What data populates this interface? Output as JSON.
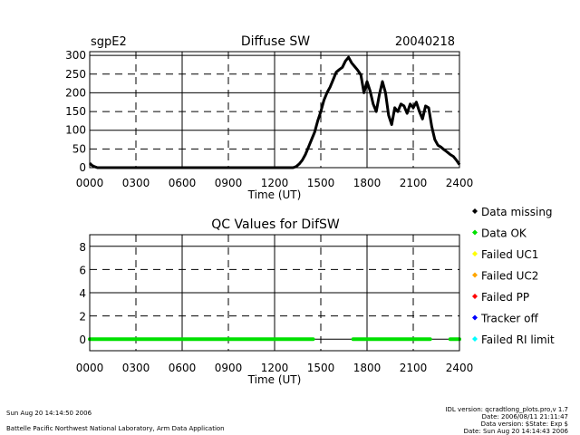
{
  "chart_data": [
    {
      "type": "line",
      "title": "Diffuse SW",
      "site_label": "sgpE2",
      "date_label": "20040218",
      "xlabel": "Time (UT)",
      "ylabel": "",
      "xlim": [
        0,
        24
      ],
      "ylim": [
        0,
        310
      ],
      "x_ticks": [
        "0000",
        "0300",
        "0600",
        "0900",
        "1200",
        "1500",
        "1800",
        "2100",
        "2400"
      ],
      "y_ticks": [
        "0",
        "50",
        "100",
        "150",
        "200",
        "250",
        "300"
      ],
      "series": [
        {
          "name": "Diffuse SW",
          "color": "#000000",
          "x": [
            0.0,
            0.15,
            0.3,
            0.5,
            3,
            6,
            9,
            12,
            13.2,
            13.4,
            13.6,
            13.8,
            14.0,
            14.2,
            14.4,
            14.6,
            14.8,
            15.0,
            15.2,
            15.4,
            15.6,
            15.8,
            16.0,
            16.2,
            16.4,
            16.6,
            16.8,
            17.0,
            17.2,
            17.4,
            17.6,
            17.8,
            18.0,
            18.2,
            18.4,
            18.6,
            18.8,
            19.0,
            19.2,
            19.4,
            19.6,
            19.8,
            20.0,
            20.2,
            20.4,
            20.6,
            20.8,
            21.0,
            21.2,
            21.4,
            21.6,
            21.8,
            22.0,
            22.2,
            22.4,
            22.6,
            22.8,
            23.0,
            23.2,
            23.4,
            23.6,
            23.8,
            24.0
          ],
          "values": [
            12,
            6,
            3,
            0,
            0,
            0,
            0,
            0,
            0,
            3,
            10,
            20,
            35,
            55,
            75,
            95,
            125,
            150,
            180,
            200,
            215,
            235,
            255,
            262,
            268,
            285,
            295,
            280,
            270,
            260,
            248,
            200,
            230,
            205,
            170,
            150,
            195,
            230,
            200,
            140,
            115,
            160,
            150,
            170,
            165,
            145,
            170,
            160,
            175,
            150,
            130,
            165,
            160,
            110,
            75,
            60,
            55,
            48,
            42,
            35,
            30,
            20,
            8
          ]
        }
      ]
    },
    {
      "type": "scatter",
      "title": "QC Values for DifSW",
      "xlabel": "Time (UT)",
      "ylabel": "",
      "xlim": [
        0,
        24
      ],
      "ylim": [
        -1,
        9
      ],
      "x_ticks": [
        "0000",
        "0300",
        "0600",
        "0900",
        "1200",
        "1500",
        "1800",
        "2100",
        "2400"
      ],
      "y_ticks": [
        "0",
        "2",
        "4",
        "6",
        "8"
      ],
      "segments": [
        {
          "name": "Data OK",
          "x_start": 0.0,
          "x_end": 14.5,
          "value": 0,
          "color": "#00e000"
        },
        {
          "name": "Data OK",
          "x_start": 17.1,
          "x_end": 22.1,
          "value": 0,
          "color": "#00e000"
        },
        {
          "name": "Data OK",
          "x_start": 23.4,
          "x_end": 24.0,
          "value": 0,
          "color": "#00e000"
        }
      ],
      "legend": [
        {
          "label": "Data missing",
          "color": "#000000"
        },
        {
          "label": "Data OK",
          "color": "#00e000"
        },
        {
          "label": "Failed UC1",
          "color": "#ffff00"
        },
        {
          "label": "Failed UC2",
          "color": "#ffa500"
        },
        {
          "label": "Failed PP",
          "color": "#ff0000"
        },
        {
          "label": "Tracker off",
          "color": "#0000ff"
        },
        {
          "label": "Failed RI limit",
          "color": "#00ffff"
        }
      ]
    }
  ],
  "footer": {
    "timestamp": "Sun Aug 20 14:14:50 2006",
    "lab": "Battelle Pacific Northwest National Laboratory, Arm Data Application",
    "idl_version": "IDL version: qcradtlong_plots.pro,v 1.7",
    "date": "Date: 2006/08/11 21:11:47",
    "data_version": "Data version: $State: Exp $",
    "data_date": "Date: Sun Aug 20 14:14:43 2006"
  }
}
